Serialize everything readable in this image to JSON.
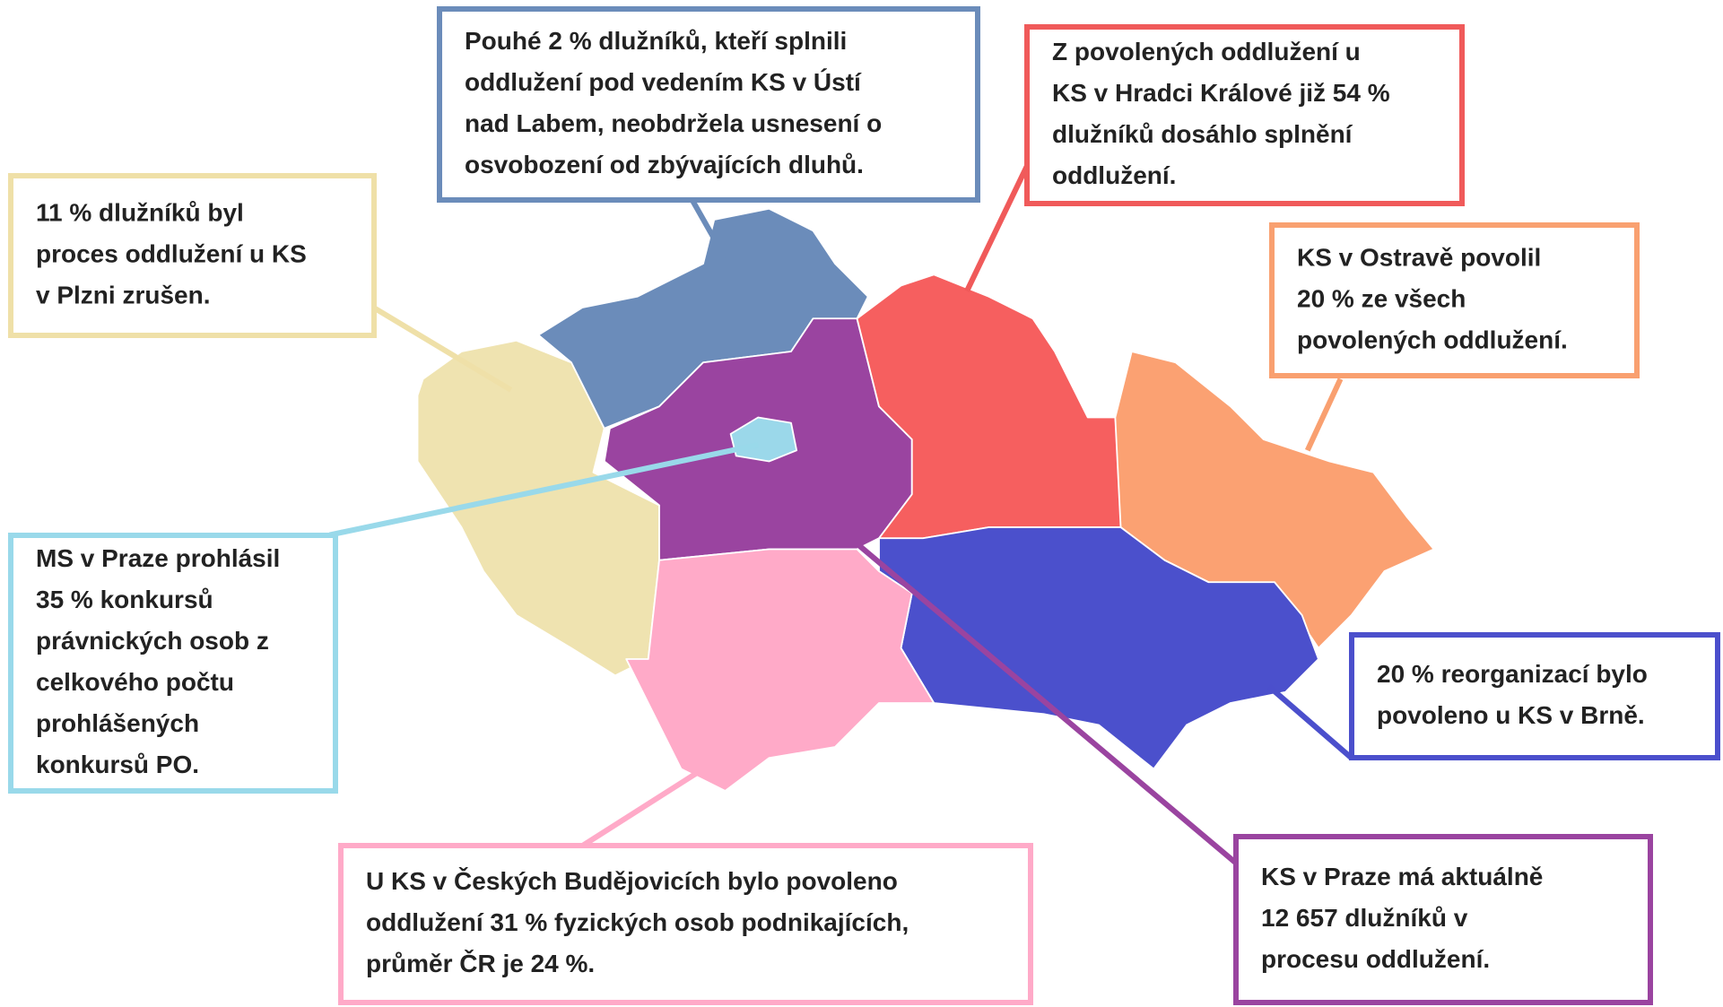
{
  "callouts": [
    {
      "lines": [
        "Pouhé 2 % dlužníků, kteří splnili",
        "oddlužení pod vedením KS v Ústí",
        "nad Labem, neobdržela usnesení o",
        "osvobození od zbývajících dluhů."
      ]
    },
    {
      "lines": [
        "Z povolených oddlužení u",
        "KS v Hradci Králové již 54 %",
        "dlužníků dosáhlo splnění",
        "oddlužení."
      ]
    },
    {
      "lines": [
        "11 % dlužníků byl",
        "proces oddlužení u KS",
        "v Plzni zrušen."
      ]
    },
    {
      "lines": [
        "KS v Ostravě povolil",
        "20 % ze všech",
        "povolených oddlužení."
      ]
    },
    {
      "lines": [
        "MS v Praze prohlásil",
        "35 % konkursů",
        "právnických osob z",
        "celkového počtu",
        "prohlášených",
        "konkursů PO."
      ]
    },
    {
      "lines": [
        "20 % reorganizací bylo",
        "povoleno u KS v Brně."
      ]
    },
    {
      "lines": [
        "U KS v Českých Budějovicích bylo povoleno",
        "oddlužení 31 % fyzických osob podnikajících,",
        "průměr ČR je 24 %."
      ]
    },
    {
      "lines": [
        "KS v Praze má aktuálně",
        "12 657 dlužníků v",
        "procesu oddlužení."
      ]
    }
  ]
}
